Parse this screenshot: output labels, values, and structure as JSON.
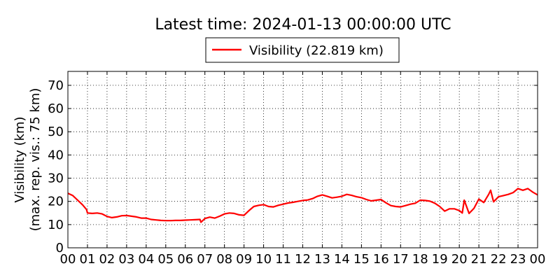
{
  "chart_data": {
    "type": "line",
    "title": "Latest time: 2024-01-13 00:00:00 UTC",
    "ylabel_line1": "Visibility (km)",
    "ylabel_line2": "(max. rep. vis.: 75 km)",
    "xlabel": "",
    "xlim": [
      0,
      24
    ],
    "ylim": [
      0,
      76
    ],
    "x_tick_labels": [
      "00",
      "01",
      "02",
      "03",
      "04",
      "05",
      "06",
      "07",
      "08",
      "09",
      "10",
      "11",
      "12",
      "13",
      "14",
      "15",
      "16",
      "17",
      "18",
      "19",
      "20",
      "21",
      "22",
      "23",
      "00"
    ],
    "y_ticks": [
      0,
      10,
      20,
      30,
      40,
      50,
      60,
      70
    ],
    "grid": true,
    "legend_placement": "top-center, above plot",
    "series": [
      {
        "name": "Visibility (22.819 km)",
        "color": "#ff0000",
        "x": [
          0,
          0.25,
          0.5,
          0.75,
          0.95,
          1.0,
          1.25,
          1.5,
          1.75,
          2.0,
          2.25,
          2.5,
          2.75,
          3.0,
          3.25,
          3.5,
          3.75,
          4.0,
          4.25,
          4.5,
          4.75,
          5.0,
          5.25,
          5.5,
          5.75,
          6.0,
          6.25,
          6.5,
          6.75,
          6.8,
          7.0,
          7.25,
          7.5,
          7.75,
          8.0,
          8.25,
          8.5,
          8.75,
          9.0,
          9.25,
          9.5,
          9.75,
          10.0,
          10.25,
          10.5,
          10.75,
          11.0,
          11.25,
          11.5,
          11.75,
          12.0,
          12.25,
          12.5,
          12.75,
          13.0,
          13.25,
          13.5,
          13.75,
          14.0,
          14.25,
          14.5,
          14.75,
          15.0,
          15.25,
          15.5,
          15.75,
          16.0,
          16.25,
          16.5,
          16.75,
          17.0,
          17.25,
          17.5,
          17.75,
          18.0,
          18.25,
          18.5,
          18.75,
          19.0,
          19.25,
          19.5,
          19.75,
          20.0,
          20.15,
          20.25,
          20.5,
          20.75,
          21.0,
          21.25,
          21.5,
          21.6,
          21.75,
          22.0,
          22.25,
          22.5,
          22.75,
          23.0,
          23.25,
          23.5,
          23.75,
          24.0
        ],
        "y": [
          23.5,
          22.5,
          20.5,
          18.5,
          16.5,
          15.0,
          14.8,
          15.0,
          14.6,
          13.5,
          13.0,
          13.3,
          13.8,
          13.9,
          13.6,
          13.3,
          12.8,
          12.8,
          12.2,
          12.0,
          11.8,
          11.7,
          11.7,
          11.8,
          11.8,
          11.9,
          12.0,
          12.1,
          12.2,
          11.0,
          12.6,
          13.2,
          12.8,
          13.6,
          14.6,
          15.0,
          14.8,
          14.2,
          14.0,
          16.0,
          17.8,
          18.3,
          18.6,
          17.8,
          17.6,
          18.3,
          18.8,
          19.3,
          19.6,
          20.0,
          20.4,
          20.6,
          21.2,
          22.2,
          22.8,
          22.2,
          21.5,
          21.8,
          22.2,
          23.0,
          22.6,
          22.0,
          21.6,
          20.8,
          20.2,
          20.5,
          20.8,
          19.4,
          18.2,
          17.8,
          17.6,
          18.2,
          18.8,
          19.2,
          20.5,
          20.4,
          20.1,
          19.2,
          17.8,
          15.8,
          16.8,
          16.8,
          16.0,
          15.0,
          20.5,
          14.8,
          17.0,
          21.0,
          19.5,
          23.0,
          24.8,
          19.8,
          22.0,
          22.5,
          23.0,
          23.8,
          25.5,
          24.8,
          25.5,
          24.0,
          22.8
        ]
      }
    ]
  }
}
